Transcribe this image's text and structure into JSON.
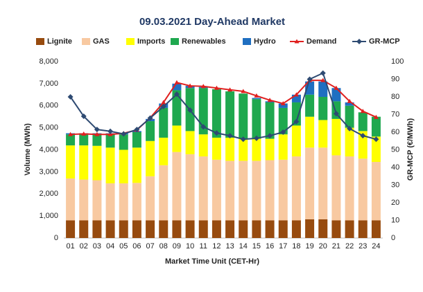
{
  "chart_data": {
    "type": "stacked-bar-line",
    "title": "09.03.2021  Day-Ahead Market",
    "x_label": "Market Time Unit (CET-Hr)",
    "y_label": "Volume (MWh)",
    "y2_label": "GR-MCP (€/MWh)",
    "categories": [
      "01",
      "02",
      "03",
      "04",
      "05",
      "06",
      "07",
      "08",
      "09",
      "10",
      "11",
      "12",
      "13",
      "14",
      "15",
      "16",
      "17",
      "18",
      "19",
      "20",
      "21",
      "22",
      "23",
      "24"
    ],
    "series": [
      {
        "name": "Lignite",
        "type": "bar",
        "color": "#974b0f",
        "values": [
          800,
          800,
          800,
          800,
          800,
          800,
          800,
          800,
          800,
          800,
          800,
          800,
          800,
          800,
          800,
          800,
          800,
          800,
          850,
          850,
          800,
          800,
          800,
          800
        ]
      },
      {
        "name": "GAS",
        "type": "bar",
        "color": "#f8c9a1",
        "values": [
          1900,
          1850,
          1820,
          1680,
          1680,
          1700,
          2000,
          2500,
          3100,
          3000,
          2900,
          2750,
          2700,
          2700,
          2700,
          2730,
          2750,
          2900,
          3250,
          3250,
          2950,
          2900,
          2800,
          2650
        ]
      },
      {
        "name": "Imports",
        "type": "bar",
        "color": "#ffff00",
        "values": [
          1500,
          1550,
          1560,
          1620,
          1520,
          1600,
          1600,
          1250,
          1200,
          1050,
          1000,
          1000,
          1050,
          1000,
          1000,
          970,
          1150,
          1400,
          1400,
          1250,
          1650,
          1300,
          1250,
          1150
        ]
      },
      {
        "name": "Renewables",
        "type": "bar",
        "color": "#1fa84f",
        "values": [
          500,
          500,
          520,
          600,
          700,
          700,
          900,
          1350,
          1600,
          1950,
          2100,
          2200,
          2100,
          2050,
          1800,
          1650,
          1200,
          1050,
          1000,
          1050,
          800,
          1000,
          850,
          900
        ]
      },
      {
        "name": "Hydro",
        "type": "bar",
        "color": "#1f6fc1",
        "values": [
          50,
          50,
          50,
          50,
          50,
          50,
          100,
          200,
          300,
          100,
          50,
          0,
          0,
          0,
          50,
          50,
          200,
          350,
          600,
          700,
          600,
          150,
          0,
          0
        ]
      },
      {
        "name": "Demand",
        "type": "line",
        "marker": "triangle",
        "color": "#e0201f",
        "values": [
          4700,
          4720,
          4700,
          4700,
          4750,
          4900,
          5450,
          6150,
          7050,
          6900,
          6880,
          6800,
          6720,
          6650,
          6450,
          6250,
          6100,
          6500,
          7150,
          7150,
          6800,
          6200,
          5750,
          5480
        ]
      },
      {
        "name": "GR-MCP",
        "type": "line",
        "marker": "diamond",
        "axis": "y2",
        "color": "#2e4a72",
        "values": [
          80,
          69,
          61.5,
          60.5,
          59,
          61.5,
          68,
          74.5,
          81.5,
          72.5,
          63,
          59.5,
          58,
          56,
          56.5,
          58,
          60,
          66,
          90,
          93.5,
          70.5,
          62,
          58,
          56
        ]
      }
    ],
    "ylim": [
      0,
      8000
    ],
    "yticks": [
      0,
      {
        "value": 1000,
        "label": "1,000"
      },
      {
        "value": 2000,
        "label": "2,000"
      },
      {
        "value": 3000,
        "label": "3,000"
      },
      {
        "value": 4000,
        "label": "4,000"
      },
      {
        "value": 5000,
        "label": "5,000"
      },
      {
        "value": 6000,
        "label": "6,000"
      },
      {
        "value": 7000,
        "label": "7,000"
      },
      {
        "value": 8000,
        "label": "8,000"
      }
    ],
    "y2lim": [
      0,
      100
    ],
    "y2ticks": [
      0,
      10,
      20,
      30,
      40,
      50,
      60,
      70,
      80,
      90,
      100
    ],
    "grid": false,
    "legend": "top"
  }
}
